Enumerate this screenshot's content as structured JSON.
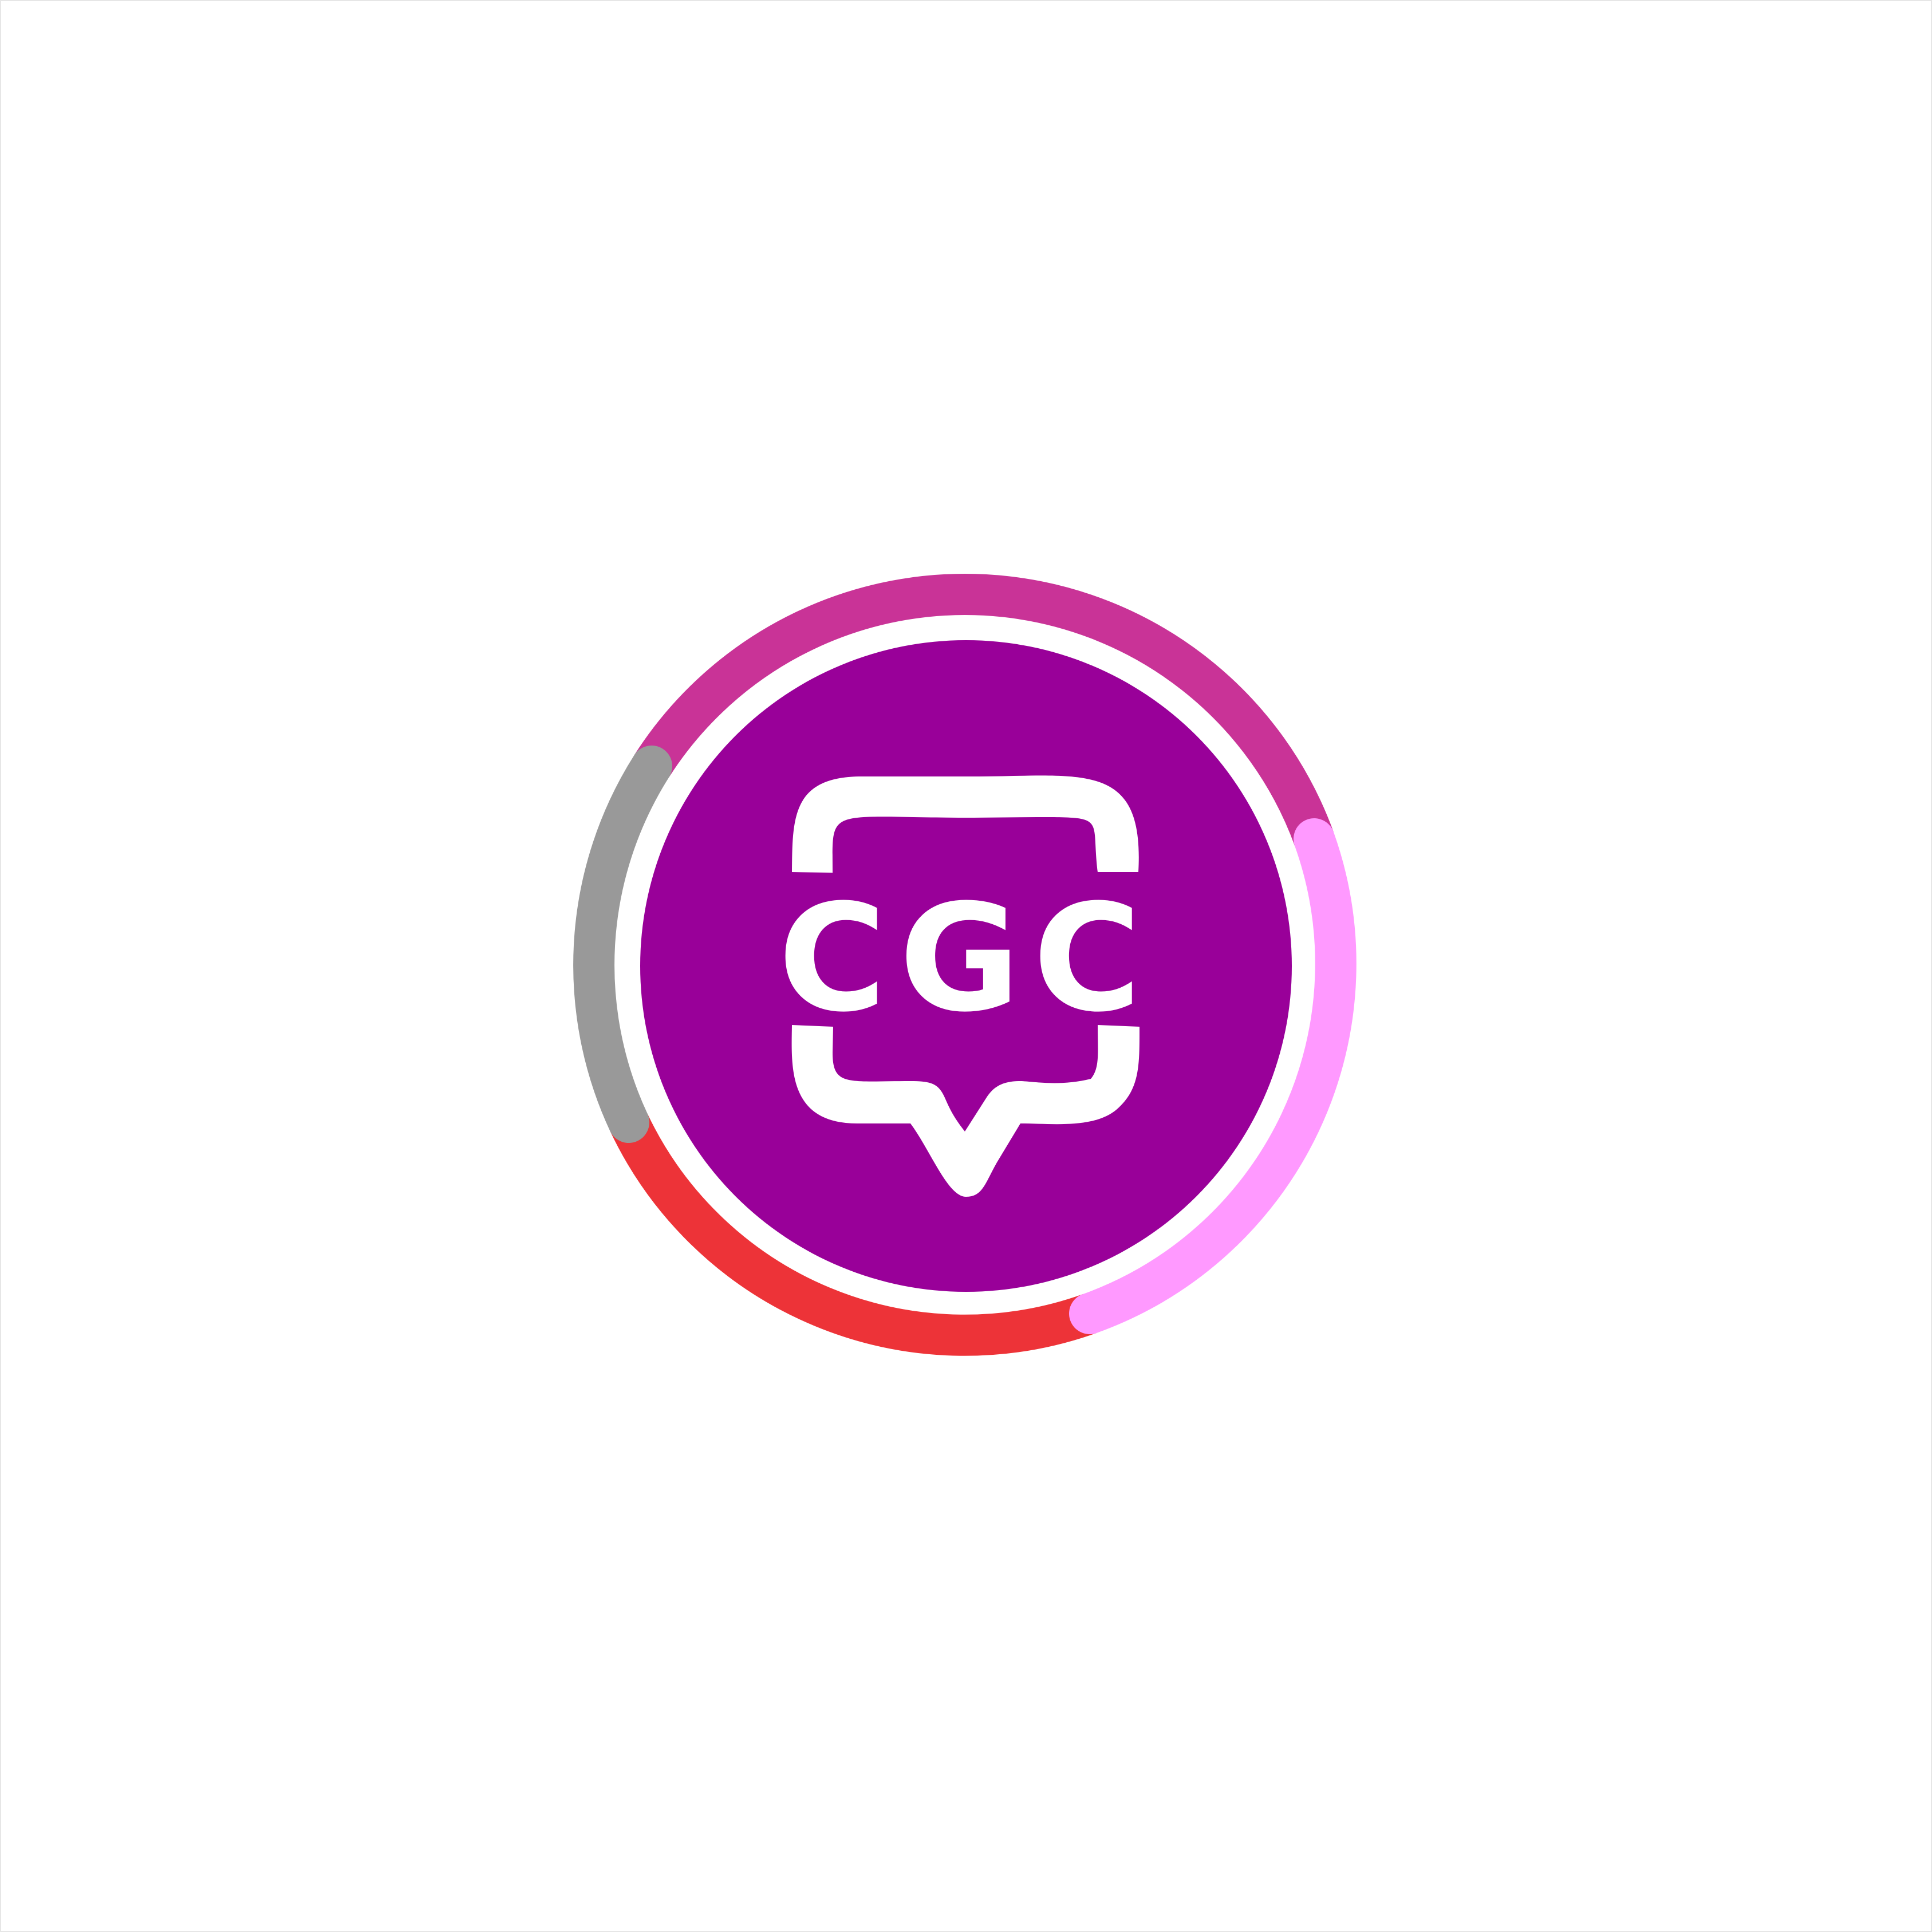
{
  "logo": {
    "text": "CGC",
    "colors": {
      "disc": "#990099",
      "ring_background": "#ffffff",
      "arc_top": "#c93397",
      "arc_right": "#ff99ff",
      "arc_bottom": "#ed3338",
      "arc_left": "#999999",
      "glyph": "#ffffff",
      "page_background": "#ffffff",
      "frame_border": "#e6e6e6"
    },
    "icons": [
      "speech-bubble-icon"
    ]
  }
}
